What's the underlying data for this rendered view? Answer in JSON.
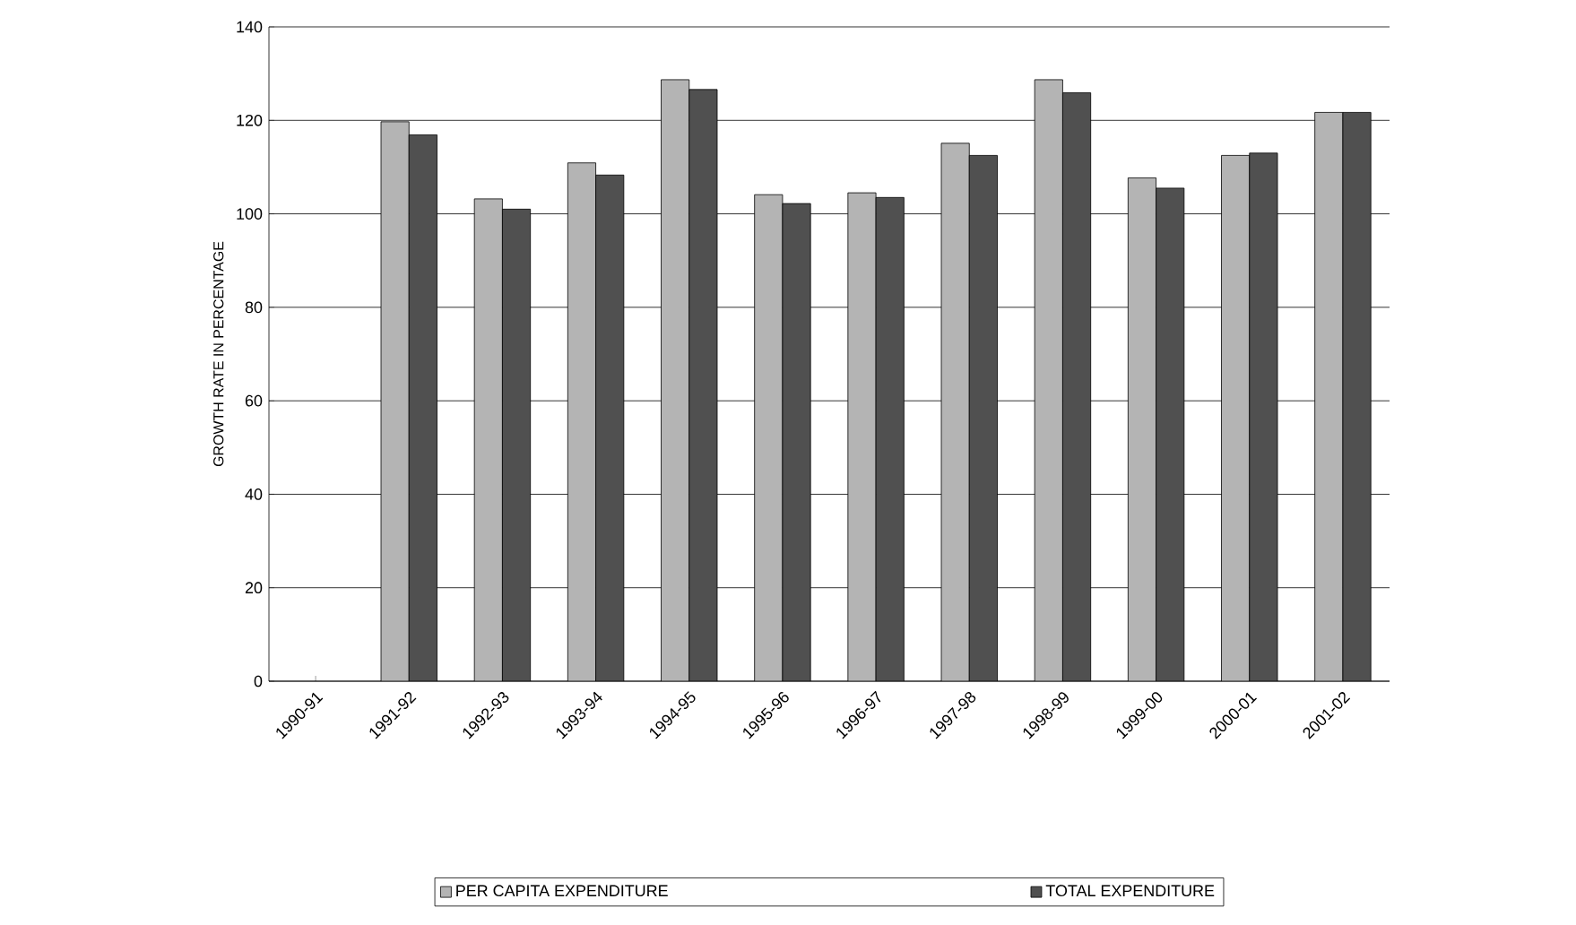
{
  "chart_data": {
    "type": "bar",
    "ylabel": "GROWTH RATE IN PERCENTAGE",
    "categories": [
      "1990-91",
      "1991-92",
      "1992-93",
      "1993-94",
      "1994-95",
      "1995-96",
      "1996-97",
      "1997-98",
      "1998-99",
      "1999-00",
      "2000-01",
      "2001-02"
    ],
    "series": [
      {
        "name": "PER CAPITA EXPENDITURE",
        "color": "#b4b4b4",
        "values": [
          null,
          119.7,
          103.2,
          110.9,
          128.7,
          104.1,
          104.5,
          115.1,
          128.7,
          107.7,
          112.5,
          121.7
        ]
      },
      {
        "name": "TOTAL EXPENDITURE",
        "color": "#505050",
        "values": [
          null,
          116.9,
          101,
          108.3,
          126.6,
          102.2,
          103.5,
          112.5,
          125.9,
          105.5,
          113,
          121.7
        ]
      }
    ],
    "ylim": [
      0,
      140
    ],
    "yticks": [
      0,
      20,
      40,
      60,
      80,
      100,
      120,
      140
    ],
    "grid": "y",
    "legend": "bottom"
  }
}
